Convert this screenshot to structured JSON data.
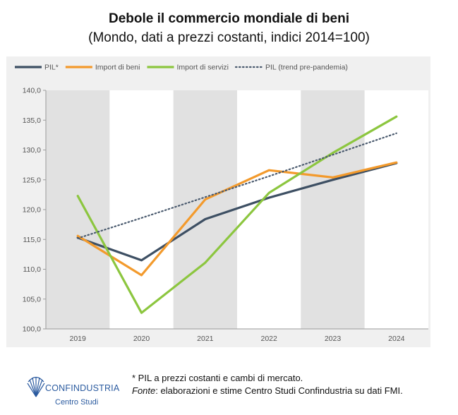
{
  "page": {
    "title": "Debole il commercio mondiale di beni",
    "subtitle": "(Mondo, dati a prezzi costanti, indici 2014=100)",
    "note": "* PIL a prezzi costanti e cambi di mercato.",
    "source_label": "Fonte",
    "source_text": ": elaborazioni e stime Centro Studi Confindustria su dati FMI.",
    "logo_name": "CONFINDUSTRIA",
    "logo_sub": "Centro Studi"
  },
  "chart_data": {
    "type": "line",
    "title": "Debole il commercio mondiale di beni",
    "subtitle": "(Mondo, dati a prezzi costanti, indici 2014=100)",
    "xlabel": "",
    "ylabel": "",
    "categories": [
      "2019",
      "2020",
      "2021",
      "2022",
      "2023",
      "2024"
    ],
    "ylim": [
      100,
      140
    ],
    "yticks": [
      "100,0",
      "105,0",
      "110,0",
      "115,0",
      "120,0",
      "125,0",
      "130,0",
      "135,0",
      "140,0"
    ],
    "legend_position": "top",
    "series": [
      {
        "name": "PIL*",
        "color": "#3d4f63",
        "style": "solid",
        "values": [
          115.3,
          111.5,
          118.4,
          122.0,
          125.0,
          127.8
        ]
      },
      {
        "name": "Import di beni",
        "color": "#f39a2c",
        "style": "solid",
        "values": [
          115.6,
          109.0,
          121.7,
          126.6,
          125.4,
          127.9
        ]
      },
      {
        "name": "Import di servizi",
        "color": "#8cc63f",
        "style": "solid",
        "values": [
          122.3,
          102.7,
          111.1,
          122.8,
          129.5,
          135.6
        ]
      },
      {
        "name": "PIL (trend pre-pandemia)",
        "color": "#4a5a6e",
        "style": "dotted",
        "values": [
          115.2,
          118.6,
          122.1,
          125.6,
          129.2,
          132.8
        ]
      }
    ],
    "colors": {
      "band": "#e1e1e1",
      "panel": "#f0f0f0",
      "gap": "#ffffff",
      "axis": "#9a9a9a",
      "text": "#555555"
    }
  }
}
